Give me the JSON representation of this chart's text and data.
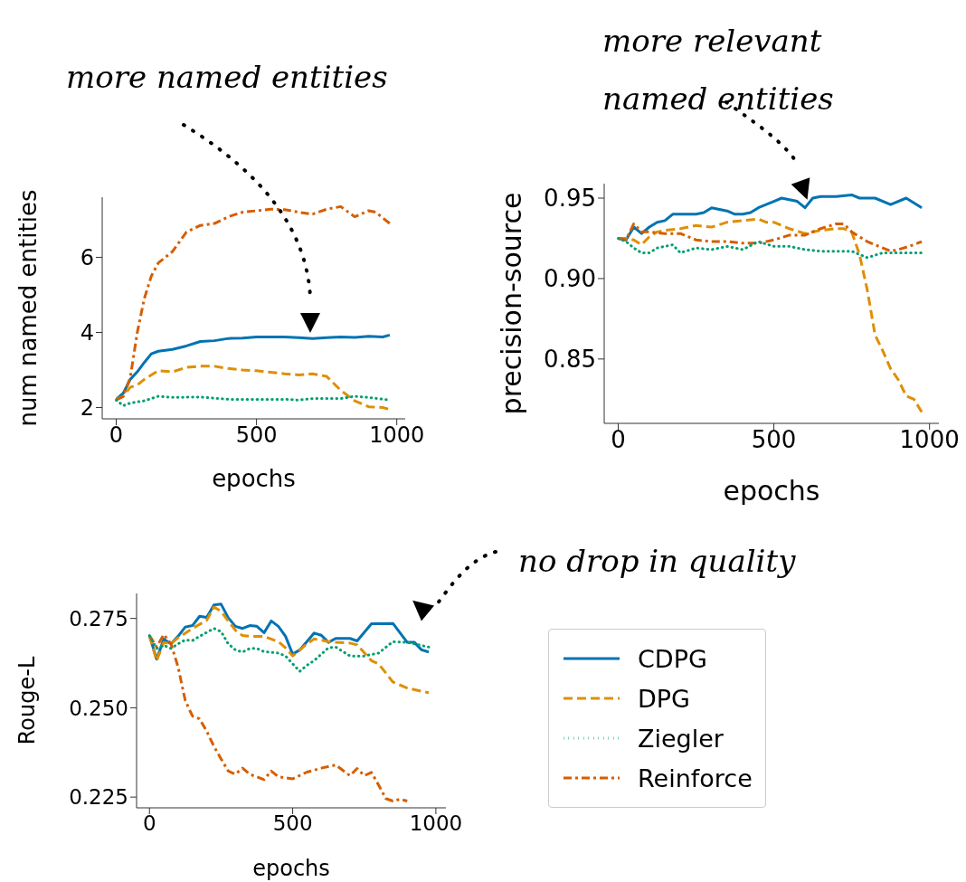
{
  "chart_data": [
    {
      "type": "line",
      "ylabel": "num named entities",
      "xlabel": "epochs",
      "annotations": [
        "more named entities"
      ],
      "xlim": [
        -50,
        1030
      ],
      "ylim": [
        1.7,
        7.6
      ],
      "xticks": [
        0,
        500,
        1000
      ],
      "yticks": [
        2,
        4,
        6
      ],
      "legend": false,
      "series": [
        {
          "color": "#0173b2",
          "line_style": "solid",
          "x": [
            0,
            25,
            50,
            75,
            100,
            125,
            150,
            200,
            250,
            300,
            350,
            400,
            450,
            500,
            550,
            600,
            650,
            700,
            750,
            800,
            850,
            900,
            950,
            975
          ],
          "values": [
            2.22,
            2.38,
            2.75,
            2.95,
            3.2,
            3.43,
            3.5,
            3.55,
            3.64,
            3.76,
            3.78,
            3.84,
            3.85,
            3.88,
            3.88,
            3.88,
            3.86,
            3.84,
            3.86,
            3.88,
            3.87,
            3.9,
            3.88,
            3.93
          ]
        },
        {
          "color": "#de8f05",
          "line_style": "dashed",
          "x": [
            0,
            25,
            50,
            75,
            100,
            150,
            200,
            250,
            300,
            350,
            400,
            450,
            500,
            550,
            600,
            650,
            700,
            750,
            800,
            850,
            900,
            950,
            975
          ],
          "values": [
            2.22,
            2.3,
            2.54,
            2.6,
            2.75,
            2.98,
            2.95,
            3.07,
            3.1,
            3.1,
            3.04,
            3.0,
            2.98,
            2.94,
            2.9,
            2.87,
            2.9,
            2.83,
            2.46,
            2.18,
            2.02,
            2.0,
            1.95
          ]
        },
        {
          "color": "#029e73",
          "line_style": "dotted",
          "x": [
            0,
            25,
            50,
            100,
            150,
            200,
            300,
            400,
            500,
            600,
            650,
            700,
            800,
            850,
            900,
            975
          ],
          "values": [
            2.2,
            2.05,
            2.12,
            2.18,
            2.3,
            2.27,
            2.28,
            2.22,
            2.22,
            2.22,
            2.2,
            2.24,
            2.24,
            2.3,
            2.27,
            2.2
          ]
        },
        {
          "color": "#d55e00",
          "line_style": "dashdot",
          "x": [
            0,
            25,
            50,
            75,
            100,
            125,
            150,
            200,
            250,
            300,
            350,
            400,
            450,
            500,
            550,
            600,
            650,
            700,
            750,
            800,
            850,
            900,
            925,
            975
          ],
          "values": [
            2.2,
            2.3,
            2.8,
            4.0,
            4.9,
            5.5,
            5.85,
            6.15,
            6.67,
            6.85,
            6.9,
            7.08,
            7.2,
            7.24,
            7.28,
            7.27,
            7.2,
            7.15,
            7.28,
            7.35,
            7.08,
            7.24,
            7.2,
            6.9
          ]
        }
      ]
    },
    {
      "type": "line",
      "ylabel": "precision-source",
      "xlabel": "epochs",
      "annotations": [
        "more relevant named entities"
      ],
      "xlim": [
        -45,
        1030
      ],
      "ylim": [
        0.81,
        0.959
      ],
      "xticks": [
        0,
        500,
        1000
      ],
      "yticks": [
        {
          "value": 0.85,
          "label": "0.85"
        },
        {
          "value": 0.9,
          "label": "0.90"
        },
        {
          "value": 0.95,
          "label": "0.95"
        }
      ],
      "legend": false,
      "series": [
        {
          "color": "#0173b2",
          "line_style": "solid",
          "x": [
            0,
            25,
            50,
            75,
            100,
            125,
            150,
            175,
            200,
            250,
            275,
            300,
            350,
            375,
            400,
            425,
            450,
            500,
            525,
            575,
            600,
            625,
            650,
            700,
            750,
            775,
            825,
            875,
            925,
            975
          ],
          "values": [
            0.925,
            0.924,
            0.932,
            0.928,
            0.932,
            0.935,
            0.936,
            0.94,
            0.94,
            0.94,
            0.941,
            0.944,
            0.942,
            0.94,
            0.94,
            0.941,
            0.944,
            0.948,
            0.95,
            0.948,
            0.944,
            0.95,
            0.951,
            0.951,
            0.952,
            0.95,
            0.95,
            0.946,
            0.95,
            0.944
          ]
        },
        {
          "color": "#de8f05",
          "line_style": "dashed",
          "x": [
            0,
            25,
            50,
            75,
            100,
            125,
            150,
            200,
            250,
            300,
            350,
            400,
            450,
            475,
            500,
            550,
            600,
            650,
            700,
            725,
            750,
            775,
            800,
            825,
            850,
            875,
            900,
            925,
            950,
            975
          ],
          "values": [
            0.925,
            0.925,
            0.924,
            0.921,
            0.926,
            0.929,
            0.93,
            0.931,
            0.933,
            0.932,
            0.935,
            0.936,
            0.937,
            0.935,
            0.935,
            0.931,
            0.928,
            0.93,
            0.931,
            0.931,
            0.929,
            0.915,
            0.893,
            0.865,
            0.855,
            0.844,
            0.837,
            0.827,
            0.825,
            0.817
          ]
        },
        {
          "color": "#029e73",
          "line_style": "dotted",
          "x": [
            0,
            25,
            50,
            75,
            100,
            125,
            175,
            200,
            250,
            300,
            350,
            400,
            450,
            500,
            550,
            600,
            650,
            700,
            750,
            800,
            850,
            900,
            975
          ],
          "values": [
            0.925,
            0.923,
            0.919,
            0.916,
            0.916,
            0.919,
            0.921,
            0.916,
            0.919,
            0.918,
            0.92,
            0.918,
            0.923,
            0.92,
            0.92,
            0.918,
            0.917,
            0.917,
            0.917,
            0.913,
            0.916,
            0.916,
            0.916
          ]
        },
        {
          "color": "#d55e00",
          "line_style": "dashdot",
          "x": [
            0,
            25,
            50,
            75,
            100,
            150,
            200,
            250,
            300,
            350,
            400,
            450,
            500,
            550,
            600,
            650,
            700,
            725,
            750,
            800,
            850,
            875,
            900,
            950,
            975
          ],
          "values": [
            0.925,
            0.924,
            0.934,
            0.929,
            0.929,
            0.928,
            0.928,
            0.924,
            0.923,
            0.923,
            0.922,
            0.922,
            0.924,
            0.927,
            0.927,
            0.931,
            0.934,
            0.934,
            0.929,
            0.923,
            0.919,
            0.917,
            0.918,
            0.921,
            0.923
          ]
        }
      ]
    },
    {
      "type": "line",
      "ylabel": "Rouge-L",
      "xlabel": "epochs",
      "annotations": [
        "no drop in quality"
      ],
      "xlim": [
        -45,
        1035
      ],
      "ylim": [
        0.222,
        0.282
      ],
      "xticks": [
        0,
        500,
        1000
      ],
      "yticks": [
        {
          "value": 0.225,
          "label": "0.225"
        },
        {
          "value": 0.25,
          "label": "0.250"
        },
        {
          "value": 0.275,
          "label": "0.275"
        }
      ],
      "legend": "right",
      "series": [
        {
          "name": "CDPG",
          "color": "#0173b2",
          "line_style": "solid",
          "x": [
            0,
            25,
            50,
            75,
            100,
            125,
            150,
            175,
            200,
            225,
            250,
            275,
            300,
            325,
            350,
            375,
            400,
            425,
            450,
            475,
            500,
            525,
            575,
            600,
            625,
            650,
            700,
            725,
            775,
            850,
            900,
            925,
            950,
            975
          ],
          "values": [
            0.2702,
            0.2636,
            0.2692,
            0.2679,
            0.27,
            0.2726,
            0.273,
            0.2756,
            0.2753,
            0.2788,
            0.279,
            0.2752,
            0.2728,
            0.2722,
            0.273,
            0.2728,
            0.271,
            0.2743,
            0.2728,
            0.27,
            0.265,
            0.2662,
            0.2709,
            0.2703,
            0.2683,
            0.2694,
            0.2694,
            0.2687,
            0.2735,
            0.2736,
            0.2683,
            0.2683,
            0.2662,
            0.2656
          ]
        },
        {
          "name": "DPG",
          "color": "#de8f05",
          "line_style": "dashed",
          "x": [
            0,
            25,
            50,
            75,
            100,
            150,
            200,
            225,
            250,
            275,
            300,
            325,
            350,
            400,
            450,
            475,
            500,
            525,
            550,
            575,
            625,
            650,
            700,
            725,
            775,
            800,
            850,
            900,
            975
          ],
          "values": [
            0.2702,
            0.2632,
            0.2683,
            0.2679,
            0.2696,
            0.2722,
            0.2745,
            0.2782,
            0.277,
            0.2743,
            0.2717,
            0.2702,
            0.27,
            0.27,
            0.2685,
            0.2668,
            0.2645,
            0.2662,
            0.2679,
            0.2693,
            0.2685,
            0.2683,
            0.2681,
            0.2676,
            0.2632,
            0.2623,
            0.2572,
            0.2555,
            0.2542
          ]
        },
        {
          "name": "Ziegler",
          "color": "#029e73",
          "line_style": "dotted",
          "x": [
            0,
            25,
            50,
            75,
            100,
            125,
            150,
            175,
            225,
            250,
            275,
            300,
            325,
            350,
            375,
            400,
            450,
            475,
            500,
            525,
            550,
            575,
            625,
            650,
            700,
            750,
            800,
            850,
            900,
            975
          ],
          "values": [
            0.2702,
            0.2666,
            0.2675,
            0.2666,
            0.2679,
            0.269,
            0.2688,
            0.27,
            0.2722,
            0.2713,
            0.2679,
            0.2662,
            0.2656,
            0.2666,
            0.2666,
            0.2657,
            0.2653,
            0.2645,
            0.2623,
            0.2602,
            0.2619,
            0.2632,
            0.2668,
            0.267,
            0.2645,
            0.2645,
            0.2653,
            0.2685,
            0.2683,
            0.267
          ]
        },
        {
          "name": "Reinforce",
          "color": "#d55e00",
          "line_style": "dashdot",
          "x": [
            0,
            25,
            50,
            75,
            100,
            125,
            150,
            175,
            200,
            225,
            250,
            275,
            300,
            325,
            350,
            400,
            425,
            450,
            500,
            550,
            600,
            650,
            700,
            725,
            750,
            775,
            800,
            825,
            850,
            875,
            900
          ],
          "values": [
            0.2702,
            0.267,
            0.2705,
            0.2679,
            0.2614,
            0.252,
            0.2477,
            0.2469,
            0.2434,
            0.2392,
            0.2357,
            0.2323,
            0.2314,
            0.2331,
            0.2314,
            0.2299,
            0.2323,
            0.2307,
            0.2301,
            0.232,
            0.2331,
            0.234,
            0.231,
            0.233,
            0.231,
            0.2319,
            0.2284,
            0.2246,
            0.2239,
            0.2244,
            0.2239
          ]
        }
      ]
    }
  ]
}
